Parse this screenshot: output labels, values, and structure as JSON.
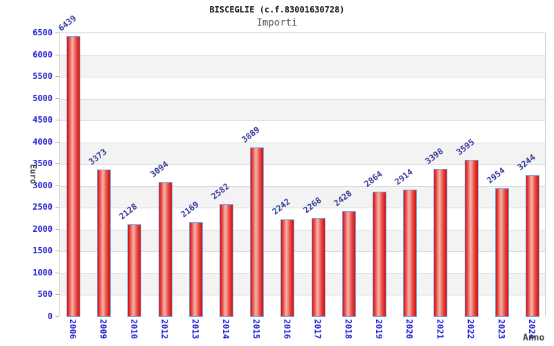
{
  "header": {
    "title": "BISCEGLIE (c.f.83001630728)",
    "subtitle": "Importi"
  },
  "chart_data": {
    "type": "bar",
    "title": "BISCEGLIE (c.f.83001630728)",
    "subtitle": "Importi",
    "xlabel": "Anno",
    "ylabel": "Euro",
    "categories": [
      "2006",
      "2009",
      "2010",
      "2012",
      "2013",
      "2014",
      "2015",
      "2016",
      "2017",
      "2018",
      "2019",
      "2020",
      "2021",
      "2022",
      "2023",
      "2024"
    ],
    "values": [
      6439,
      3373,
      2128,
      3094,
      2169,
      2582,
      3889,
      2242,
      2268,
      2428,
      2864,
      2914,
      3398,
      3595,
      2954,
      3244
    ],
    "ylim": [
      0,
      6500
    ],
    "ytick_step": 500,
    "grid": true,
    "alternating_bands": true,
    "legend": "none",
    "colors": {
      "tick_label": "#1f1fd0",
      "value_label": "#333a99",
      "axis_title": "#444444",
      "title": "#111111",
      "subtitle": "#555555",
      "band": "#f3f3f3",
      "gridline": "#dadada",
      "plot_border": "#c8c8c8",
      "tick_mark": "#aaaaaa",
      "bar_border": "#70a8e8",
      "bar_dark": "#cf0e0e",
      "bar_mid": "#e84a42",
      "bar_light": "#f4b6ae"
    }
  }
}
